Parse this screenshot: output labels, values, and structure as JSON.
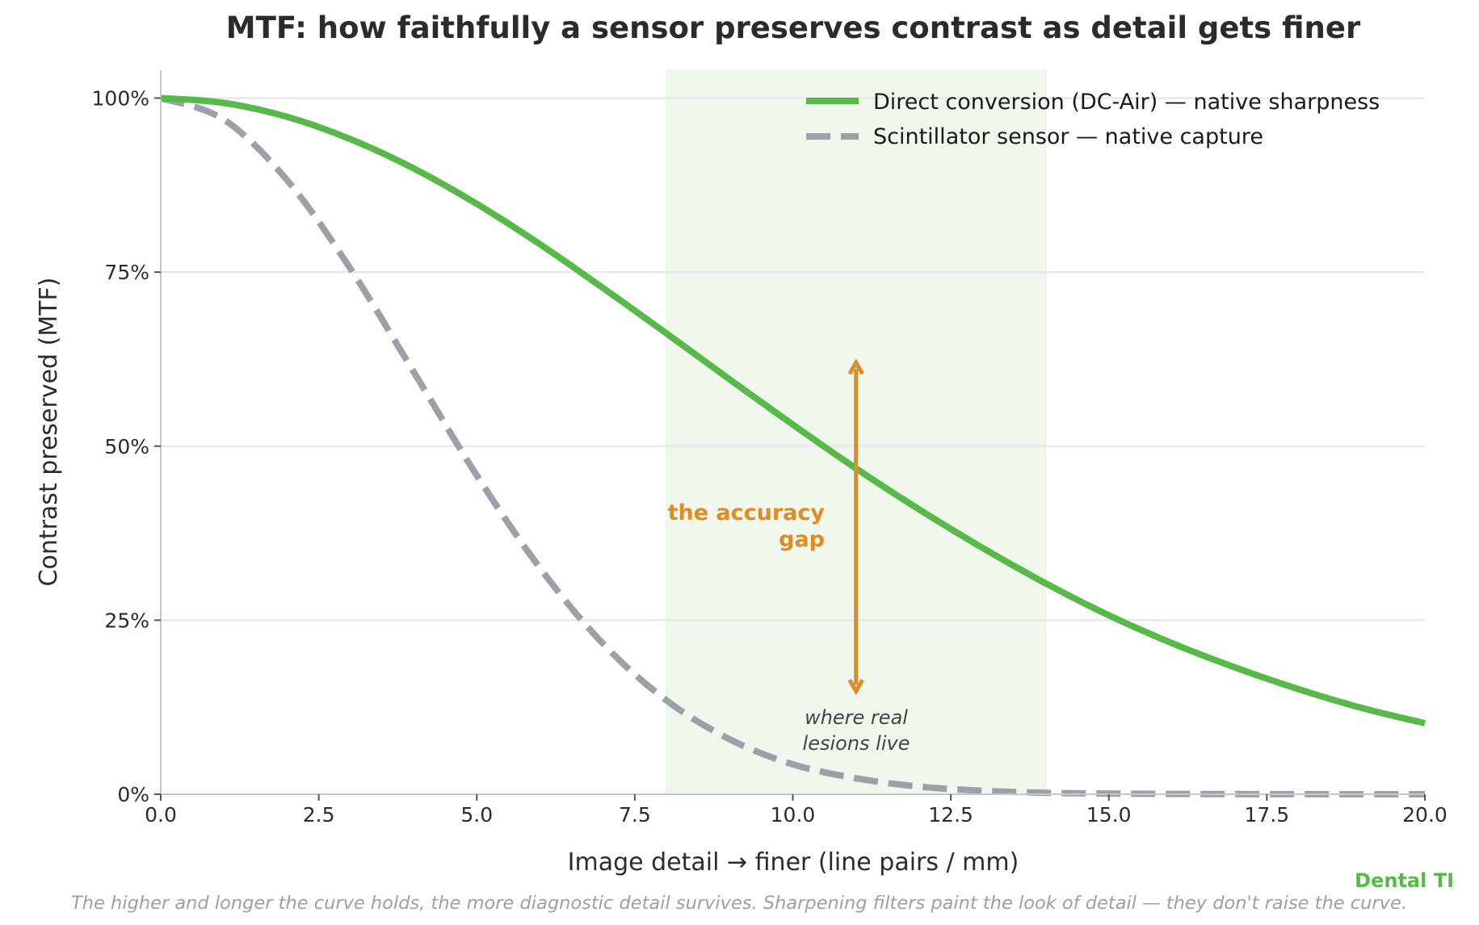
{
  "chart_data": {
    "type": "line",
    "title": "MTF: how faithfully a sensor preserves contrast as detail gets finer",
    "xlabel": "Image detail  →  finer  (line pairs / mm)",
    "ylabel": "Contrast preserved  (MTF)",
    "xlim": [
      0,
      20
    ],
    "ylim": [
      0,
      1.04
    ],
    "x_ticks": [
      0,
      2.5,
      5,
      7.5,
      10,
      12.5,
      15,
      17.5,
      20
    ],
    "x_tick_labels": [
      "0.0",
      "2.5",
      "5.0",
      "7.5",
      "10.0",
      "12.5",
      "15.0",
      "17.5",
      "20.0"
    ],
    "y_ticks": [
      0,
      0.25,
      0.5,
      0.75,
      1.0
    ],
    "y_tick_labels": [
      "0%",
      "25%",
      "50%",
      "75%",
      "100%"
    ],
    "grid": "horizontal",
    "legend_position": "top-right",
    "x": [
      0,
      1,
      2,
      3,
      4,
      5,
      6,
      7,
      8,
      9,
      10,
      11,
      12,
      13,
      14,
      15,
      16,
      17,
      18,
      19,
      20
    ],
    "series": [
      {
        "name": "Direct conversion (DC-Air) — native sharpness",
        "style": "solid",
        "color": "#57b947",
        "values": [
          1.0,
          0.993,
          0.973,
          0.941,
          0.899,
          0.848,
          0.79,
          0.727,
          0.662,
          0.596,
          0.531,
          0.468,
          0.409,
          0.354,
          0.303,
          0.257,
          0.217,
          0.182,
          0.151,
          0.124,
          0.102
        ]
      },
      {
        "name": "Scintillator sensor — native capture",
        "style": "dashed",
        "color": "#9ca0a7",
        "values": [
          1.0,
          0.969,
          0.882,
          0.755,
          0.607,
          0.458,
          0.325,
          0.216,
          0.135,
          0.079,
          0.043,
          0.023,
          0.011,
          0.005,
          0.002,
          0.001,
          0.0005,
          0.0002,
          0.0001,
          0.0,
          0.0
        ]
      }
    ],
    "shaded_band": {
      "x_range": [
        8,
        14
      ],
      "label_line1": "where real",
      "label_line2": "lesions live",
      "color": "#eaf6e6"
    },
    "gap_annotation": {
      "x": 11,
      "y_from": 0.148,
      "y_to": 0.62,
      "label_line1": "the accuracy",
      "label_line2": "gap",
      "color": "#e08b23"
    },
    "brand": "Dental TI",
    "brand_color": "#57b947",
    "footnote": "The higher and longer the curve holds, the more diagnostic detail survives. Sharpening filters paint the look of detail — they don't raise the curve."
  }
}
